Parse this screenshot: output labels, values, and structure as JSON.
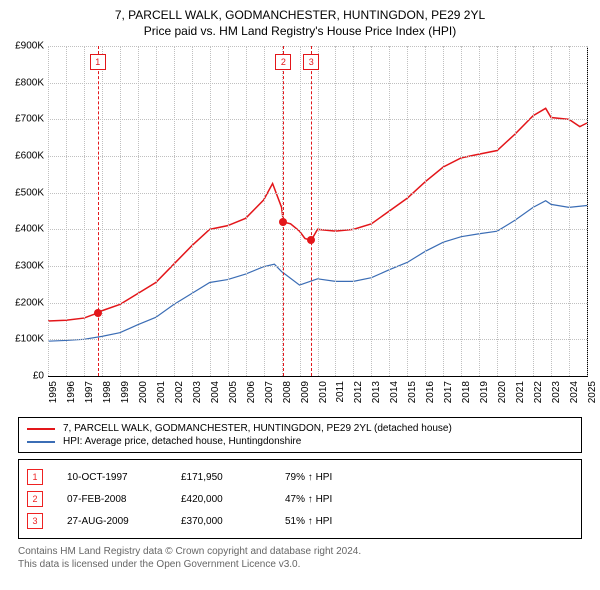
{
  "titles": {
    "main": "7, PARCELL WALK, GODMANCHESTER, HUNTINGDON, PE29 2YL",
    "sub": "Price paid vs. HM Land Registry's House Price Index (HPI)"
  },
  "chart": {
    "type": "line",
    "background_color": "#ffffff",
    "grid_color": "#c0c0c0",
    "y": {
      "min": 0,
      "max": 900,
      "step": 100,
      "labels": [
        "£0",
        "£100K",
        "£200K",
        "£300K",
        "£400K",
        "£500K",
        "£600K",
        "£700K",
        "£800K",
        "£900K"
      ]
    },
    "x": {
      "min": 1995,
      "max": 2025,
      "labels": [
        "1995",
        "1996",
        "1997",
        "1998",
        "1999",
        "2000",
        "2001",
        "2002",
        "2003",
        "2004",
        "2005",
        "2006",
        "2007",
        "2008",
        "2009",
        "2010",
        "2011",
        "2012",
        "2013",
        "2014",
        "2015",
        "2016",
        "2017",
        "2018",
        "2019",
        "2020",
        "2021",
        "2022",
        "2023",
        "2024",
        "2025"
      ]
    },
    "series": [
      {
        "name": "property",
        "color": "#e3161a",
        "line_width": 1.5,
        "values": [
          [
            1995,
            150
          ],
          [
            1996,
            152
          ],
          [
            1997,
            158
          ],
          [
            1997.77,
            172
          ],
          [
            1998,
            178
          ],
          [
            1999,
            195
          ],
          [
            2000,
            225
          ],
          [
            2001,
            255
          ],
          [
            2002,
            305
          ],
          [
            2003,
            355
          ],
          [
            2004,
            400
          ],
          [
            2005,
            410
          ],
          [
            2006,
            430
          ],
          [
            2007,
            480
          ],
          [
            2007.5,
            525
          ],
          [
            2008,
            460
          ],
          [
            2008.1,
            420
          ],
          [
            2008.5,
            415
          ],
          [
            2009,
            395
          ],
          [
            2009.3,
            375
          ],
          [
            2009.65,
            370
          ],
          [
            2010,
            400
          ],
          [
            2011,
            395
          ],
          [
            2012,
            400
          ],
          [
            2013,
            415
          ],
          [
            2014,
            450
          ],
          [
            2015,
            485
          ],
          [
            2016,
            530
          ],
          [
            2017,
            570
          ],
          [
            2018,
            595
          ],
          [
            2019,
            605
          ],
          [
            2020,
            615
          ],
          [
            2021,
            660
          ],
          [
            2022,
            710
          ],
          [
            2022.7,
            730
          ],
          [
            2023,
            705
          ],
          [
            2024,
            700
          ],
          [
            2024.6,
            680
          ],
          [
            2025,
            690
          ]
        ]
      },
      {
        "name": "hpi",
        "color": "#3b6db5",
        "line_width": 1.2,
        "values": [
          [
            1995,
            95
          ],
          [
            1996,
            97
          ],
          [
            1997,
            100
          ],
          [
            1998,
            108
          ],
          [
            1999,
            118
          ],
          [
            2000,
            140
          ],
          [
            2001,
            160
          ],
          [
            2002,
            195
          ],
          [
            2003,
            225
          ],
          [
            2004,
            255
          ],
          [
            2005,
            263
          ],
          [
            2006,
            278
          ],
          [
            2007,
            298
          ],
          [
            2007.6,
            305
          ],
          [
            2008,
            285
          ],
          [
            2009,
            248
          ],
          [
            2010,
            265
          ],
          [
            2011,
            258
          ],
          [
            2012,
            258
          ],
          [
            2013,
            268
          ],
          [
            2014,
            290
          ],
          [
            2015,
            310
          ],
          [
            2016,
            340
          ],
          [
            2017,
            365
          ],
          [
            2018,
            380
          ],
          [
            2019,
            388
          ],
          [
            2020,
            395
          ],
          [
            2021,
            425
          ],
          [
            2022,
            460
          ],
          [
            2022.7,
            478
          ],
          [
            2023,
            468
          ],
          [
            2024,
            460
          ],
          [
            2025,
            465
          ]
        ]
      }
    ],
    "markers": [
      {
        "num": "1",
        "x": 1997.77,
        "y": 172,
        "color": "#e3161a"
      },
      {
        "num": "2",
        "x": 2008.1,
        "y": 420,
        "color": "#e3161a"
      },
      {
        "num": "3",
        "x": 2009.65,
        "y": 370,
        "color": "#e3161a"
      }
    ]
  },
  "legend": {
    "items": [
      {
        "color": "#e3161a",
        "label": "7, PARCELL WALK, GODMANCHESTER, HUNTINGDON, PE29 2YL (detached house)"
      },
      {
        "color": "#3b6db5",
        "label": "HPI: Average price, detached house, Huntingdonshire"
      }
    ]
  },
  "transactions": [
    {
      "num": "1",
      "date": "10-OCT-1997",
      "price": "£171,950",
      "hpi": "79% ↑ HPI"
    },
    {
      "num": "2",
      "date": "07-FEB-2008",
      "price": "£420,000",
      "hpi": "47% ↑ HPI"
    },
    {
      "num": "3",
      "date": "27-AUG-2009",
      "price": "£370,000",
      "hpi": "51% ↑ HPI"
    }
  ],
  "footnote": {
    "line1": "Contains HM Land Registry data © Crown copyright and database right 2024.",
    "line2": "This data is licensed under the Open Government Licence v3.0."
  }
}
